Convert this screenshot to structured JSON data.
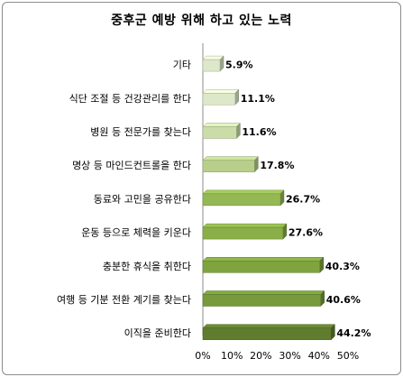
{
  "chart_data": {
    "type": "bar",
    "orientation": "horizontal",
    "title": "중후군 예방 위해 하고 있는 노력",
    "categories": [
      "기타",
      "식단 조절 등 건강관리를 한다",
      "병원 등 전문가를 찾는다",
      "명상 등 마인드컨트롤을 한다",
      "동료와 고민을 공유한다",
      "운동 등으로 체력을 키운다",
      "충분한 휴식을 취한다",
      "여행 등 기분 전환 계기를 찾는다",
      "이직을 준비한다"
    ],
    "values": [
      5.9,
      11.1,
      11.6,
      17.8,
      26.7,
      27.6,
      40.3,
      40.6,
      44.2
    ],
    "value_labels": [
      "5.9%",
      "11.1%",
      "11.6%",
      "17.8%",
      "26.7%",
      "27.6%",
      "40.3%",
      "40.6%",
      "44.2%"
    ],
    "xlim": [
      0,
      50
    ],
    "xticks": [
      "0%",
      "10%",
      "20%",
      "30%",
      "40%",
      "50%"
    ],
    "grid": false,
    "bar_colors": [
      "#dde7c9",
      "#dde7c9",
      "#cbdca9",
      "#b7cf8a",
      "#94b954",
      "#8aaf48",
      "#7fa43f",
      "#779a3c",
      "#607d2f"
    ]
  }
}
